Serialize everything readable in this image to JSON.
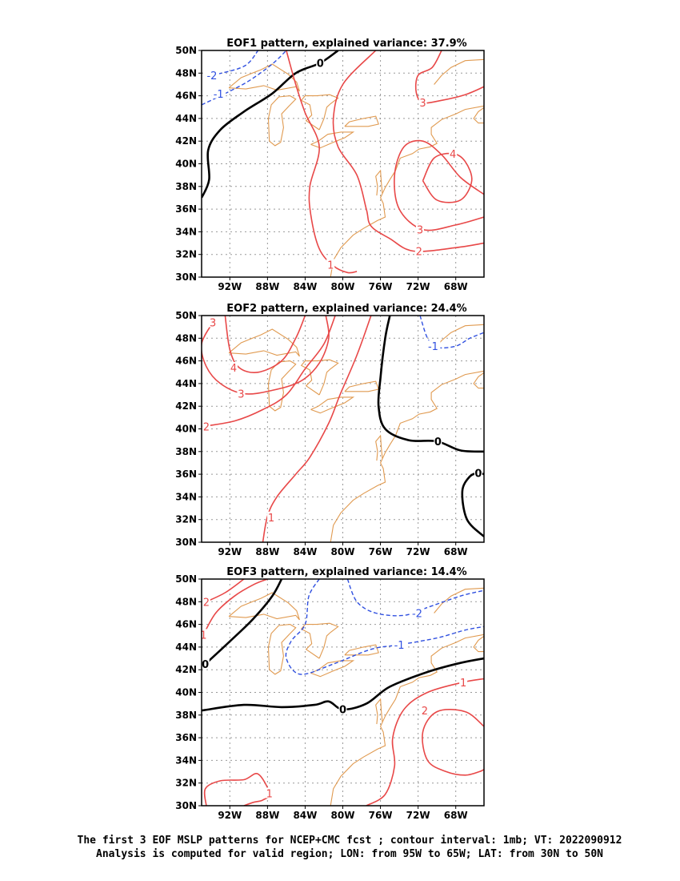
{
  "colors": {
    "positive": "#e84848",
    "negative": "#3050e0",
    "zero": "#000000",
    "coast": "#e09a50",
    "grid": "#999999"
  },
  "footer": {
    "line1": "The first 3 EOF MSLP patterns for NCEP+CMC fcst ; contour interval: 1mb; VT: 2022090912",
    "line2": "Analysis is computed for valid region; LON: from 95W to 65W; LAT: from 30N to 50N"
  },
  "chart_data": [
    {
      "type": "contour",
      "title": "EOF1 pattern, explained variance: 37.9%",
      "xlim": [
        -95,
        -65
      ],
      "ylim": [
        30,
        50
      ],
      "grid": true,
      "x_ticks": [
        -92,
        -88,
        -84,
        -80,
        -76,
        -72,
        -68
      ],
      "x_tick_labels": [
        "92W",
        "88W",
        "84W",
        "80W",
        "76W",
        "72W",
        "68W"
      ],
      "y_ticks": [
        30,
        32,
        34,
        36,
        38,
        40,
        42,
        44,
        46,
        48,
        50
      ],
      "y_tick_labels": [
        "30N",
        "32N",
        "34N",
        "36N",
        "38N",
        "40N",
        "42N",
        "44N",
        "46N",
        "48N",
        "50N"
      ],
      "contour_labels": [
        {
          "text": "-2",
          "level": -2,
          "lon": -93.9,
          "lat": 47.8
        },
        {
          "text": "-1",
          "level": -1,
          "lon": -93.2,
          "lat": 46.2
        },
        {
          "text": "0",
          "level": 0,
          "lon": -82.4,
          "lat": 48.9
        },
        {
          "text": "1",
          "level": 1,
          "lon": -81.3,
          "lat": 31.1
        },
        {
          "text": "2",
          "level": 2,
          "lon": -71.9,
          "lat": 32.3
        },
        {
          "text": "3",
          "level": 3,
          "lon": -71.5,
          "lat": 45.4
        },
        {
          "text": "3",
          "level": 3,
          "lon": -71.8,
          "lat": 34.2
        },
        {
          "text": "4",
          "level": 4,
          "lon": -68.3,
          "lat": 40.9
        }
      ]
    },
    {
      "type": "contour",
      "title": "EOF2 pattern, explained variance: 24.4%",
      "xlim": [
        -95,
        -65
      ],
      "ylim": [
        30,
        50
      ],
      "grid": true,
      "x_ticks": [
        -92,
        -88,
        -84,
        -80,
        -76,
        -72,
        -68
      ],
      "x_tick_labels": [
        "92W",
        "88W",
        "84W",
        "80W",
        "76W",
        "72W",
        "68W"
      ],
      "y_ticks": [
        30,
        32,
        34,
        36,
        38,
        40,
        42,
        44,
        46,
        48,
        50
      ],
      "y_tick_labels": [
        "30N",
        "32N",
        "34N",
        "36N",
        "38N",
        "40N",
        "42N",
        "44N",
        "46N",
        "48N",
        "50N"
      ],
      "contour_labels": [
        {
          "text": "3",
          "level": 3,
          "lon": -93.8,
          "lat": 49.4
        },
        {
          "text": "4",
          "level": 4,
          "lon": -91.6,
          "lat": 45.4
        },
        {
          "text": "3",
          "level": 3,
          "lon": -90.8,
          "lat": 43.1
        },
        {
          "text": "2",
          "level": 2,
          "lon": -94.5,
          "lat": 40.2
        },
        {
          "text": "1",
          "level": 1,
          "lon": -87.6,
          "lat": 32.2
        },
        {
          "text": "-1",
          "level": -1,
          "lon": -70.4,
          "lat": 47.3
        },
        {
          "text": "0",
          "level": 0,
          "lon": -69.9,
          "lat": 38.9
        },
        {
          "text": "0",
          "level": 0,
          "lon": -65.6,
          "lat": 36.1
        }
      ]
    },
    {
      "type": "contour",
      "title": "EOF3 pattern, explained variance: 14.4%",
      "xlim": [
        -95,
        -65
      ],
      "ylim": [
        30,
        50
      ],
      "grid": true,
      "x_ticks": [
        -92,
        -88,
        -84,
        -80,
        -76,
        -72,
        -68
      ],
      "x_tick_labels": [
        "92W",
        "88W",
        "84W",
        "80W",
        "76W",
        "72W",
        "68W"
      ],
      "y_ticks": [
        30,
        32,
        34,
        36,
        38,
        40,
        42,
        44,
        46,
        48,
        50
      ],
      "y_tick_labels": [
        "30N",
        "32N",
        "34N",
        "36N",
        "38N",
        "40N",
        "42N",
        "44N",
        "46N",
        "48N",
        "50N"
      ],
      "contour_labels": [
        {
          "text": "2",
          "level": 2,
          "lon": -94.5,
          "lat": 48.0
        },
        {
          "text": "1",
          "level": 1,
          "lon": -94.8,
          "lat": 45.1
        },
        {
          "text": "0",
          "level": 0,
          "lon": -94.6,
          "lat": 42.5
        },
        {
          "text": "0",
          "level": 0,
          "lon": -80.0,
          "lat": 38.5
        },
        {
          "text": "-2",
          "level": -2,
          "lon": -72.1,
          "lat": 47.0
        },
        {
          "text": "-1",
          "level": -1,
          "lon": -74.0,
          "lat": 44.2
        },
        {
          "text": "1",
          "level": 1,
          "lon": -67.2,
          "lat": 40.9
        },
        {
          "text": "2",
          "level": 2,
          "lon": -71.3,
          "lat": 38.4
        },
        {
          "text": "1",
          "level": 1,
          "lon": -87.8,
          "lat": 31.1
        }
      ]
    }
  ]
}
